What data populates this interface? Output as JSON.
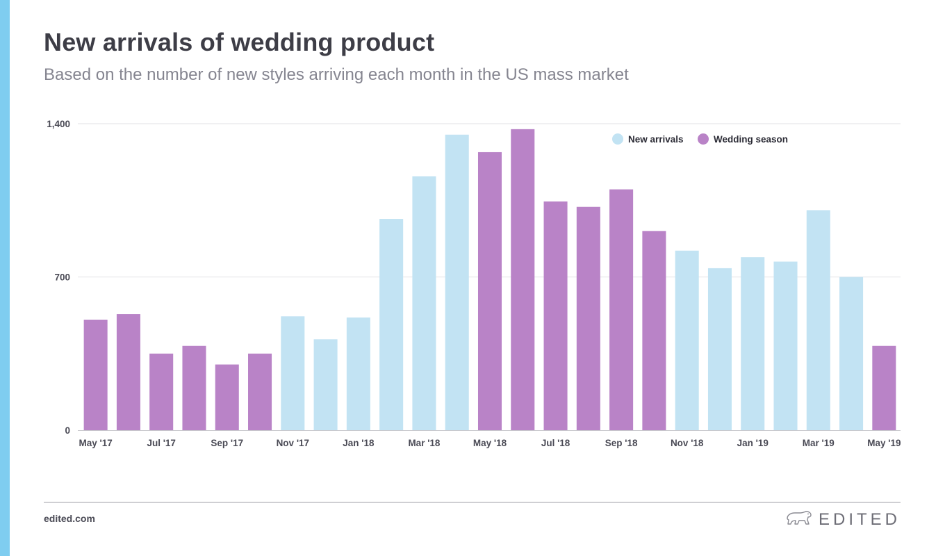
{
  "header": {
    "title": "New arrivals of wedding product",
    "subtitle": "Based on the number of new styles arriving each month in the US mass market"
  },
  "footer": {
    "url": "edited.com",
    "brand": "EDITED",
    "brand_icon": "polar-bear-icon"
  },
  "colors": {
    "accent_bar": "#7fcdf0",
    "new_arrivals": "#c2e3f3",
    "wedding_season": "#b983c7",
    "gridline": "#e1e1e5",
    "axis": "#c8c8cc"
  },
  "chart_data": {
    "type": "bar",
    "ylim": [
      0,
      1400
    ],
    "y_ticks": [
      {
        "value": 0,
        "label": "0"
      },
      {
        "value": 700,
        "label": "700"
      },
      {
        "value": 1400,
        "label": "1,400"
      }
    ],
    "grid": true,
    "legend_position": "top-right",
    "legend": [
      {
        "key": "new_arrivals",
        "label": "New arrivals"
      },
      {
        "key": "wedding_season",
        "label": "Wedding season"
      }
    ],
    "x_tick_labels": [
      "May '17",
      "Jul '17",
      "Sep '17",
      "Nov '17",
      "Jan '18",
      "Mar '18",
      "May '18",
      "Jul '18",
      "Sep '18",
      "Nov '18",
      "Jan '19",
      "Mar '19",
      "May '19"
    ],
    "categories": [
      "May '17",
      "Jun '17",
      "Jul '17",
      "Aug '17",
      "Sep '17",
      "Oct '17",
      "Nov '17",
      "Dec '17",
      "Jan '18",
      "Feb '18",
      "Mar '18",
      "Apr '18",
      "May '18",
      "Jun '18",
      "Jul '18",
      "Aug '18",
      "Sep '18",
      "Oct '18",
      "Nov '18",
      "Dec '18",
      "Jan '19",
      "Feb '19",
      "Mar '19",
      "Apr '19",
      "May '19"
    ],
    "values": [
      505,
      530,
      350,
      385,
      300,
      350,
      520,
      415,
      515,
      965,
      1160,
      1350,
      1270,
      1375,
      1045,
      1020,
      1100,
      910,
      820,
      740,
      790,
      770,
      1005,
      700,
      385
    ],
    "series_key": [
      "wedding_season",
      "wedding_season",
      "wedding_season",
      "wedding_season",
      "wedding_season",
      "wedding_season",
      "new_arrivals",
      "new_arrivals",
      "new_arrivals",
      "new_arrivals",
      "new_arrivals",
      "new_arrivals",
      "wedding_season",
      "wedding_season",
      "wedding_season",
      "wedding_season",
      "wedding_season",
      "wedding_season",
      "new_arrivals",
      "new_arrivals",
      "new_arrivals",
      "new_arrivals",
      "new_arrivals",
      "new_arrivals",
      "wedding_season"
    ]
  }
}
